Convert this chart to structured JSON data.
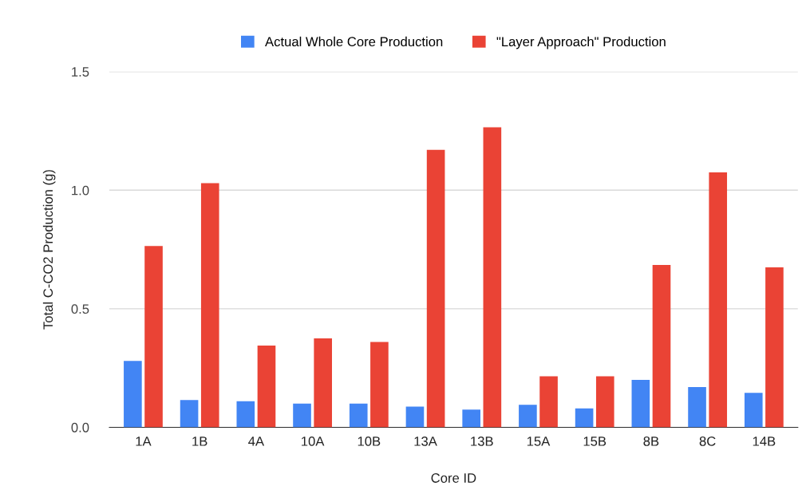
{
  "chart_data": {
    "type": "bar",
    "xlabel": "Core ID",
    "ylabel": "Total C-CO2 Production (g)",
    "categories": [
      "1A",
      "1B",
      "4A",
      "10A",
      "10B",
      "13A",
      "13B",
      "15A",
      "15B",
      "8B",
      "8C",
      "14B"
    ],
    "series": [
      {
        "name": "Actual Whole Core Production",
        "color": "#4285f4",
        "values": [
          0.28,
          0.115,
          0.11,
          0.1,
          0.1,
          0.087,
          0.075,
          0.095,
          0.08,
          0.2,
          0.17,
          0.145
        ]
      },
      {
        "name": "\"Layer Approach\" Production",
        "color": "#ea4335",
        "values": [
          0.765,
          1.03,
          0.345,
          0.375,
          0.36,
          1.17,
          1.265,
          0.215,
          0.215,
          0.685,
          1.075,
          0.675
        ]
      }
    ],
    "ylim": [
      0,
      1.5
    ],
    "yticks": [
      {
        "value": 0,
        "label": "0.0"
      },
      {
        "value": 0.5,
        "label": "0.5"
      },
      {
        "value": 1,
        "label": "1.0"
      },
      {
        "value": 1.5,
        "label": "1.5"
      }
    ],
    "grid": "y",
    "legend": "top"
  }
}
